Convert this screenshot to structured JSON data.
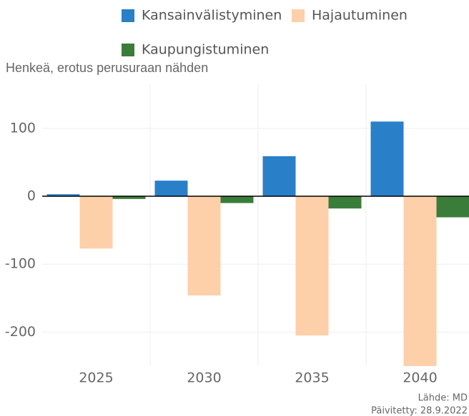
{
  "chart_data": {
    "type": "bar",
    "axis_title": "Henkeä, erotus perusuraan nähden",
    "categories": [
      "2025",
      "2030",
      "2035",
      "2040"
    ],
    "series": [
      {
        "name": "Kansainvälistyminen",
        "color": "#2a7fc9",
        "values": [
          3,
          23,
          59,
          110
        ]
      },
      {
        "name": "Hajautuminen",
        "color": "#fdd0aa",
        "values": [
          -77,
          -146,
          -205,
          -250
        ]
      },
      {
        "name": "Kaupungistuminen",
        "color": "#3a7d3a",
        "values": [
          -4,
          -10,
          -18,
          -31
        ]
      }
    ],
    "ylim": [
      -250,
      165
    ],
    "yticks": [
      -200,
      -100,
      0,
      100
    ],
    "grid": true,
    "source": "Lähde: MD",
    "updated": "Päivitetty: 28.9.2022"
  }
}
